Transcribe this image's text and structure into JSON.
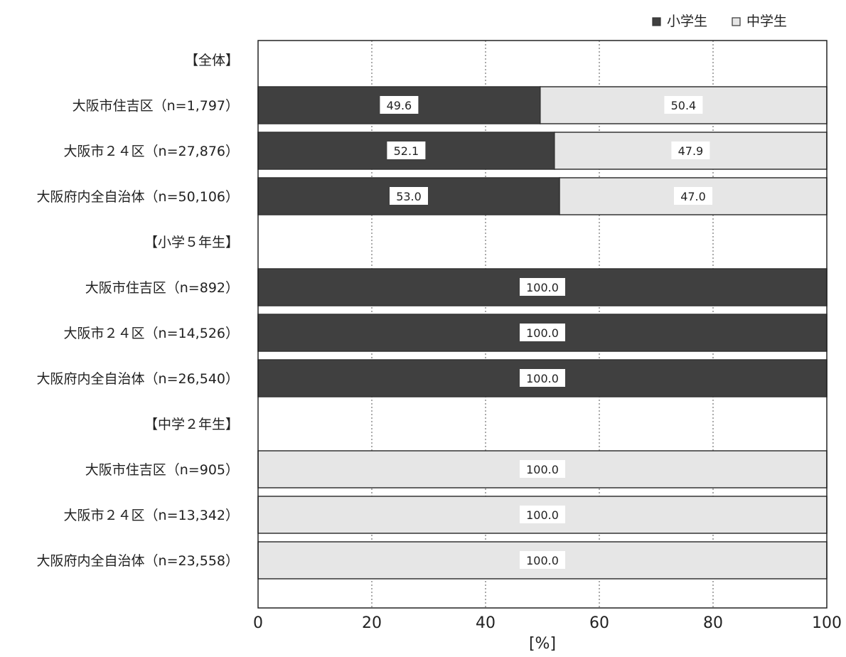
{
  "chart_data": {
    "type": "bar",
    "orientation": "horizontal",
    "stacked": true,
    "xlabel": "[%]",
    "xlim": [
      0,
      100
    ],
    "x_ticks": [
      0,
      20,
      40,
      60,
      80,
      100
    ],
    "grid": "vertical dotted",
    "legend_position": "top-right",
    "series": [
      {
        "name": "小学生",
        "color": "#404040"
      },
      {
        "name": "中学生",
        "color": "#e6e6e6"
      }
    ],
    "rows": [
      {
        "label": "【全体】",
        "header": true
      },
      {
        "label": "大阪市住吉区（n=1,797）",
        "values": [
          49.6,
          50.4
        ]
      },
      {
        "label": "大阪市２４区（n=27,876）",
        "values": [
          52.1,
          47.9
        ]
      },
      {
        "label": "大阪府内全自治体（n=50,106）",
        "values": [
          53.0,
          47.0
        ]
      },
      {
        "label": "【小学５年生】",
        "header": true
      },
      {
        "label": "大阪市住吉区（n=892）",
        "values": [
          100.0,
          0
        ]
      },
      {
        "label": "大阪市２４区（n=14,526）",
        "values": [
          100.0,
          0
        ]
      },
      {
        "label": "大阪府内全自治体（n=26,540）",
        "values": [
          100.0,
          0
        ]
      },
      {
        "label": "【中学２年生】",
        "header": true
      },
      {
        "label": "大阪市住吉区（n=905）",
        "values": [
          0,
          100.0
        ]
      },
      {
        "label": "大阪市２４区（n=13,342）",
        "values": [
          0,
          100.0
        ]
      },
      {
        "label": "大阪府内全自治体（n=23,558）",
        "values": [
          0,
          100.0
        ]
      }
    ]
  }
}
